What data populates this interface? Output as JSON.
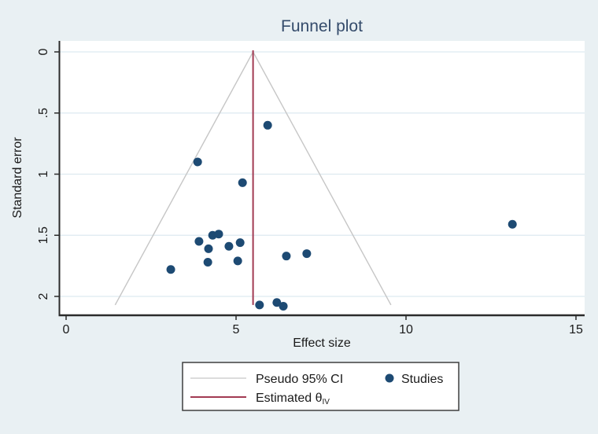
{
  "figure": {
    "title": "Funnel plot",
    "background_color": "#e9f0f3",
    "plot_background": "#ffffff"
  },
  "chart_data": {
    "type": "scatter",
    "title": "Funnel plot",
    "xlabel": "Effect size",
    "ylabel": "Standard error",
    "xlim": [
      0,
      15
    ],
    "se_axis_max": 2,
    "y_axis_reversed": true,
    "grid": "horizontal",
    "x_ticks": {
      "values": [
        0,
        5,
        10,
        15
      ],
      "labels": [
        "0",
        "5",
        "10",
        "15"
      ]
    },
    "y_ticks": {
      "values": [
        0,
        0.5,
        1,
        1.5,
        2
      ],
      "labels": [
        "0",
        ".5",
        "1",
        "1.5",
        "2"
      ]
    },
    "estimated_theta": 5.5,
    "pseudo_ci_multiplier": 1.96,
    "funnel_max_se": 2.07,
    "series": [
      {
        "name": "Studies",
        "type": "scatter",
        "points_format": [
          "effect_size",
          "standard_error"
        ],
        "points": [
          [
            5.93,
            0.6
          ],
          [
            3.87,
            0.9
          ],
          [
            5.19,
            1.07
          ],
          [
            13.13,
            1.41
          ],
          [
            3.08,
            1.78
          ],
          [
            3.91,
            1.55
          ],
          [
            4.31,
            1.5
          ],
          [
            4.49,
            1.49
          ],
          [
            4.19,
            1.61
          ],
          [
            4.17,
            1.72
          ],
          [
            4.79,
            1.59
          ],
          [
            5.12,
            1.56
          ],
          [
            5.05,
            1.71
          ],
          [
            6.48,
            1.67
          ],
          [
            7.08,
            1.65
          ],
          [
            5.69,
            2.07
          ],
          [
            6.2,
            2.05
          ],
          [
            6.39,
            2.08
          ]
        ]
      }
    ],
    "colors": {
      "point": "#1d4a73",
      "ci_line": "#c6c6c6",
      "theta_line": "#a23a52",
      "grid": "#dde9f0",
      "axis": "#2b2b2b",
      "title": "#344b6b",
      "legend_border": "#3f3f3f",
      "legend_background": "#ffffff"
    }
  },
  "legend": {
    "pseudo_ci_label": "Pseudo 95% CI",
    "studies_label": "Studies",
    "estimated_label": "Estimated θ",
    "estimated_sub": "IV"
  }
}
